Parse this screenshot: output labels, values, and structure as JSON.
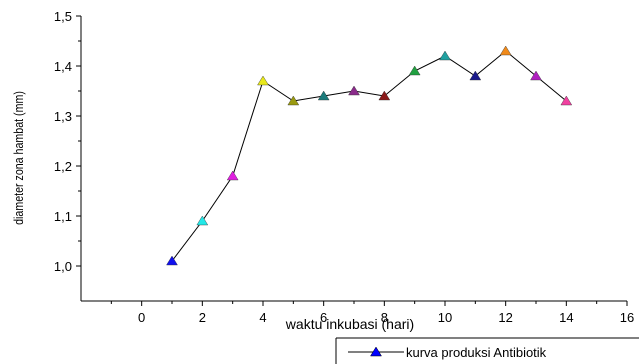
{
  "chart_data": {
    "type": "line",
    "xlabel": "waktu inkubasi (hari)",
    "ylabel": "diameter zona hambat (mm)",
    "xlim": [
      -2,
      16
    ],
    "ylim": [
      0.93,
      1.5
    ],
    "x_ticks": [
      0,
      2,
      4,
      6,
      8,
      10,
      12,
      14,
      16
    ],
    "x_tick_labels": [
      "0",
      "2",
      "4",
      "6",
      "8",
      "10",
      "12",
      "14",
      "16"
    ],
    "y_ticks": [
      1.0,
      1.1,
      1.2,
      1.3,
      1.4,
      1.5
    ],
    "y_tick_labels": [
      "1,0",
      "1,1",
      "1,2",
      "1,3",
      "1,4",
      "1,5"
    ],
    "legend_position": "bottom-right",
    "series": [
      {
        "name": "kurva produksi Antibiotik",
        "line_color": "#000000",
        "legend_marker_color": "#0000ff",
        "x": [
          1,
          2,
          3,
          4,
          5,
          6,
          7,
          8,
          9,
          10,
          11,
          12,
          13,
          14
        ],
        "values": [
          1.01,
          1.09,
          1.18,
          1.37,
          1.33,
          1.34,
          1.35,
          1.34,
          1.39,
          1.42,
          1.38,
          1.43,
          1.38,
          1.33
        ],
        "marker_colors": [
          "#1010ee",
          "#22e8e8",
          "#e020e0",
          "#e8e81a",
          "#9a9a10",
          "#1a7a7a",
          "#8a2a8a",
          "#8a1a1a",
          "#20a040",
          "#20a0a0",
          "#1a1a8a",
          "#f08a1a",
          "#b020c0",
          "#f040a0"
        ]
      }
    ]
  }
}
